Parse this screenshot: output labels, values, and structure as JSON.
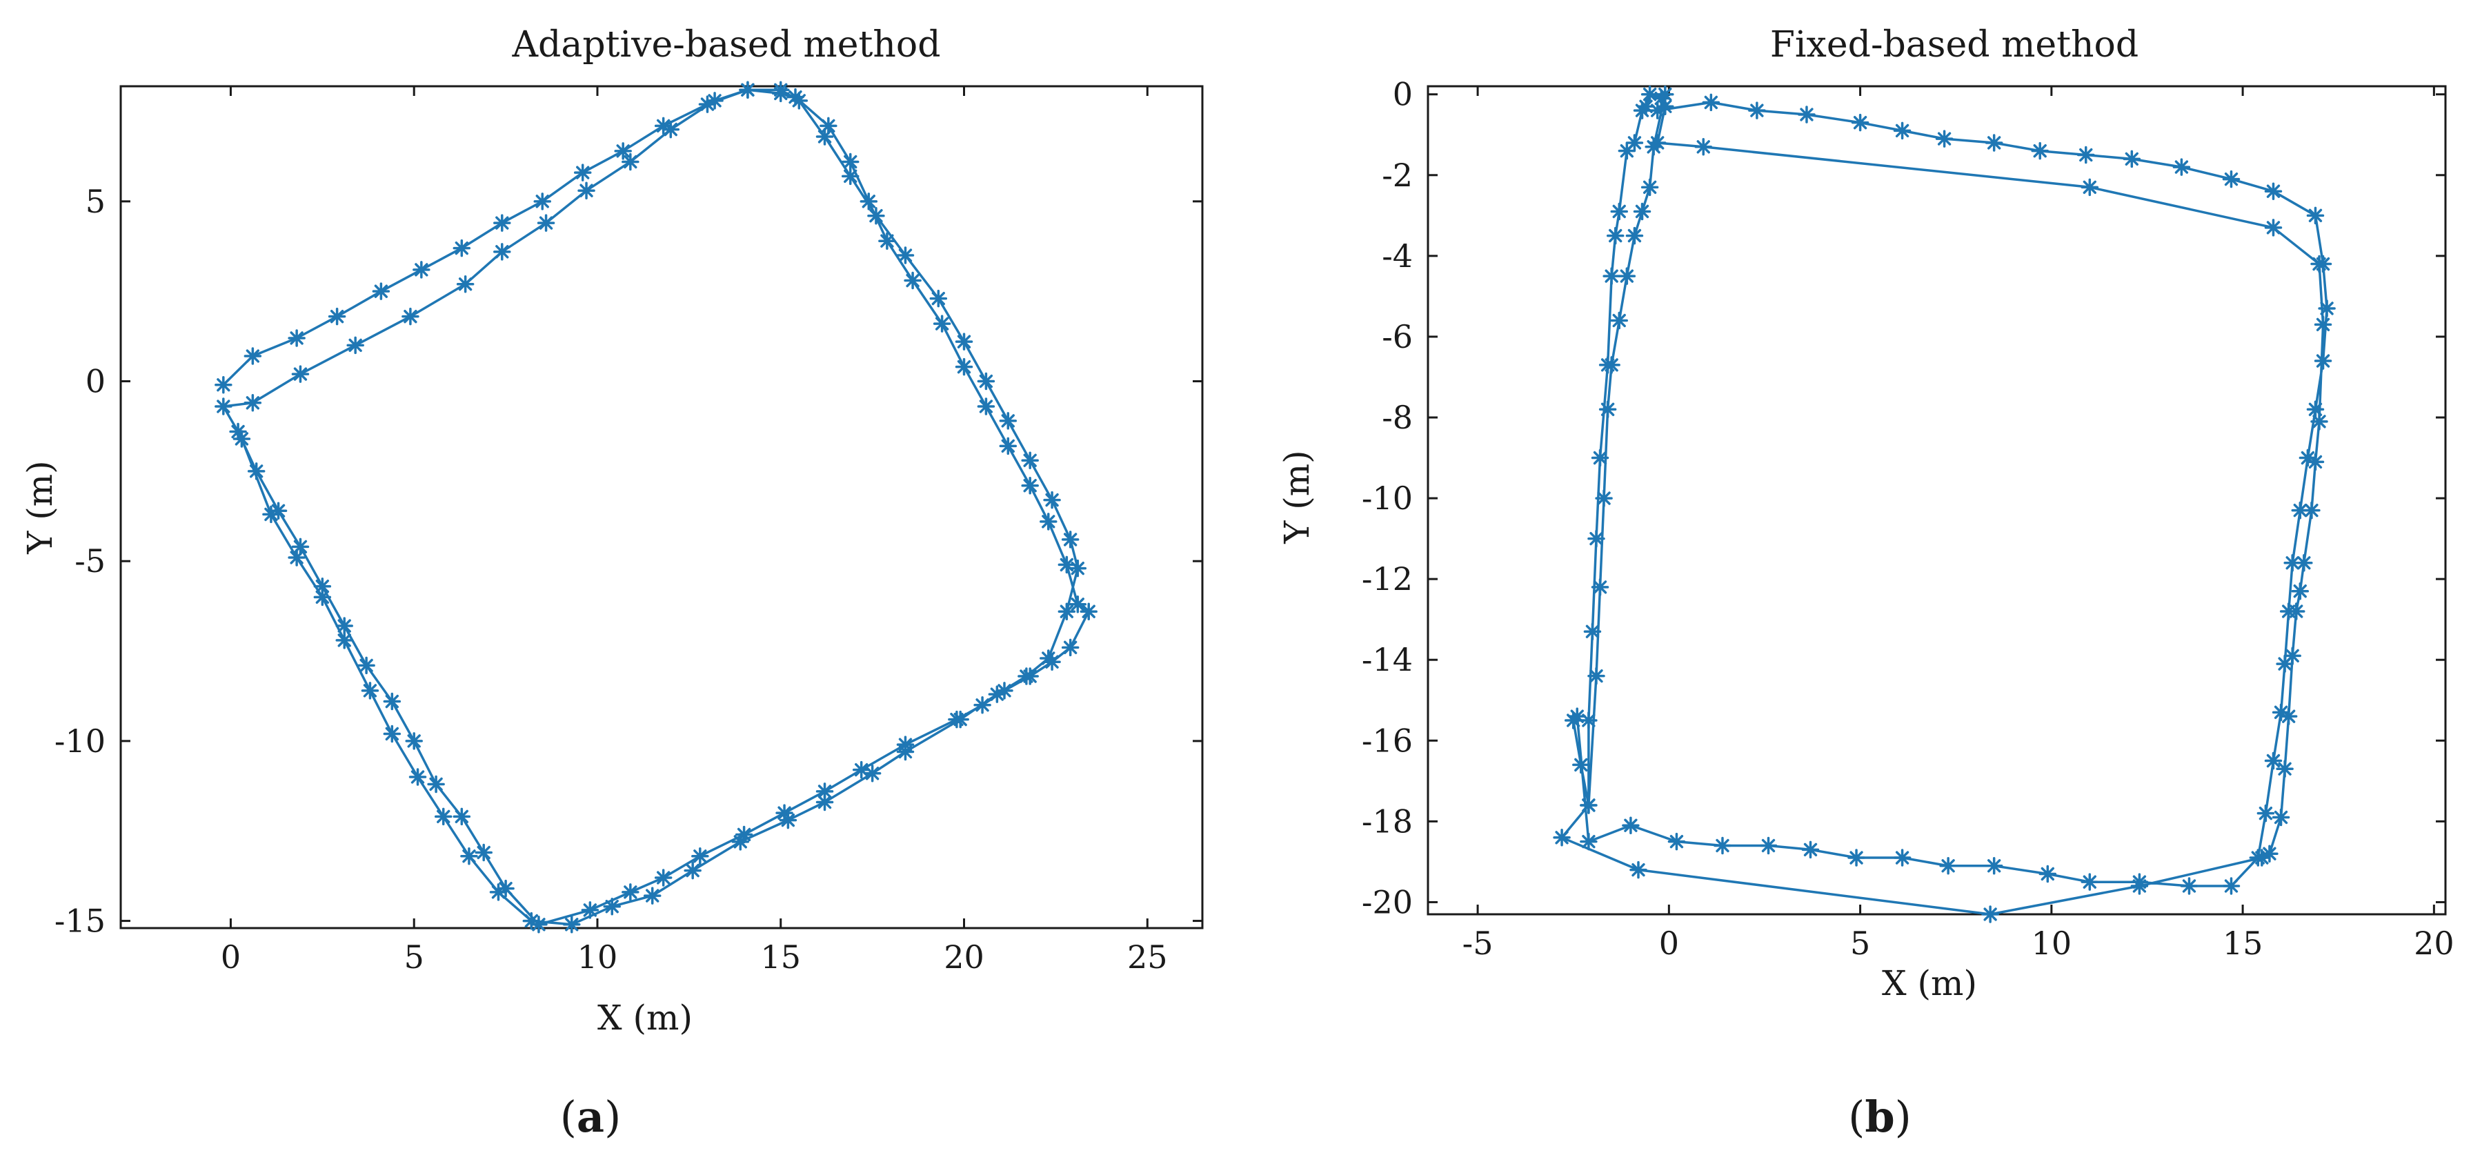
{
  "colors": {
    "series": "#1f77b4",
    "axis": "#1a1a1a"
  },
  "chart_data": [
    {
      "type": "line",
      "panel_label": "a",
      "title": "Adaptive-based method",
      "xlabel": "X (m)",
      "ylabel": "Y (m)",
      "xlim": [
        -3,
        26.5
      ],
      "ylim": [
        -15.2,
        8.2
      ],
      "xticks": [
        0,
        5,
        10,
        15,
        20,
        25
      ],
      "yticks": [
        -15,
        -10,
        -5,
        0,
        5
      ],
      "xtick_labels": [
        "0",
        "5",
        "10",
        "15",
        "20",
        "25"
      ],
      "ytick_labels": [
        "-15",
        "-10",
        "-5",
        "0",
        "5"
      ],
      "marker": "asterisk",
      "series": [
        {
          "name": "trajectory",
          "x": [
            -0.2,
            0.6,
            1.8,
            2.9,
            4.1,
            5.2,
            6.3,
            7.4,
            8.5,
            9.6,
            10.7,
            11.8,
            13.0,
            14.1,
            15.0,
            15.4,
            16.3,
            16.9,
            17.4,
            17.9,
            18.6,
            19.4,
            20.0,
            20.6,
            21.2,
            21.8,
            22.3,
            22.8,
            23.1,
            23.4,
            22.9,
            22.4,
            21.8,
            21.1,
            20.5,
            19.8,
            18.4,
            17.2,
            16.2,
            15.1,
            14.0,
            12.8,
            11.8,
            10.9,
            9.8,
            8.4,
            7.5,
            6.9,
            6.3,
            5.6,
            5.0,
            4.4,
            3.7,
            3.1,
            2.5,
            1.9,
            1.3,
            0.7,
            0.2,
            -0.2,
            0.6,
            1.9,
            3.4,
            4.9,
            6.4,
            7.4,
            8.6,
            9.7,
            10.9,
            12.0,
            13.2,
            14.1,
            15.0,
            15.5,
            16.2,
            16.9,
            17.6,
            18.4,
            19.3,
            20.0,
            20.6,
            21.2,
            21.8,
            22.4,
            22.9,
            23.1,
            22.8,
            22.3,
            21.7,
            20.9,
            19.9,
            18.4,
            17.5,
            16.2,
            15.2,
            13.9,
            12.6,
            11.5,
            10.4,
            9.3,
            8.2,
            7.3,
            6.5,
            5.8,
            5.1,
            4.4,
            3.8,
            3.1,
            2.5,
            1.8,
            1.1,
            0.3
          ],
          "y": [
            -0.1,
            0.7,
            1.2,
            1.8,
            2.5,
            3.1,
            3.7,
            4.4,
            5.0,
            5.8,
            6.4,
            7.1,
            7.7,
            8.1,
            8.0,
            7.9,
            7.1,
            6.1,
            5.0,
            3.9,
            2.8,
            1.6,
            0.4,
            -0.7,
            -1.8,
            -2.9,
            -3.9,
            -5.1,
            -6.2,
            -6.4,
            -7.4,
            -7.8,
            -8.2,
            -8.6,
            -9.0,
            -9.4,
            -10.1,
            -10.8,
            -11.4,
            -12.0,
            -12.6,
            -13.2,
            -13.8,
            -14.2,
            -14.7,
            -15.1,
            -14.1,
            -13.1,
            -12.1,
            -11.2,
            -10.0,
            -8.9,
            -7.9,
            -6.8,
            -5.7,
            -4.6,
            -3.6,
            -2.5,
            -1.4,
            -0.7,
            -0.6,
            0.2,
            1.0,
            1.8,
            2.7,
            3.6,
            4.4,
            5.3,
            6.1,
            7.0,
            7.8,
            8.1,
            8.1,
            7.8,
            6.8,
            5.7,
            4.6,
            3.5,
            2.3,
            1.1,
            0.0,
            -1.1,
            -2.2,
            -3.3,
            -4.4,
            -5.2,
            -6.4,
            -7.7,
            -8.2,
            -8.7,
            -9.4,
            -10.3,
            -10.9,
            -11.7,
            -12.2,
            -12.8,
            -13.6,
            -14.3,
            -14.6,
            -15.1,
            -15.0,
            -14.2,
            -13.2,
            -12.1,
            -11.0,
            -9.8,
            -8.6,
            -7.2,
            -6.0,
            -4.9,
            -3.7,
            -1.6
          ]
        }
      ]
    },
    {
      "type": "line",
      "panel_label": "b",
      "title": "Fixed-based method",
      "xlabel": "X (m)",
      "ylabel": "Y (m)",
      "xlim": [
        -6.3,
        20.3
      ],
      "ylim": [
        -20.3,
        0.2
      ],
      "xticks": [
        -5,
        0,
        5,
        10,
        15,
        20
      ],
      "yticks": [
        0,
        -2,
        -4,
        -6,
        -8,
        -10,
        -12,
        -14,
        -16,
        -18,
        -20
      ],
      "xtick_labels": [
        "-5",
        "0",
        "5",
        "10",
        "15",
        "20"
      ],
      "ytick_labels": [
        "0",
        "-2",
        "-4",
        "-6",
        "-8",
        "-10",
        "-12",
        "-14",
        "-16",
        "-18",
        "-20"
      ],
      "marker": "asterisk",
      "series": [
        {
          "name": "trajectory",
          "x": [
            -0.3,
            1.1,
            2.3,
            3.6,
            5.0,
            6.1,
            7.2,
            8.5,
            9.7,
            10.9,
            12.1,
            13.4,
            14.7,
            15.8,
            16.9,
            17.1,
            17.2,
            17.1,
            16.9,
            16.7,
            16.5,
            16.3,
            16.2,
            16.1,
            16.0,
            15.8,
            15.6,
            15.4,
            14.7,
            13.6,
            12.3,
            11.0,
            9.9,
            8.5,
            7.3,
            6.1,
            4.9,
            3.7,
            2.6,
            1.4,
            0.2,
            -1.0,
            -2.1,
            -2.4,
            -2.5,
            -2.3,
            -2.1,
            -2.1,
            -2.0,
            -1.9,
            -1.8,
            -1.6,
            -1.5,
            -1.4,
            -1.3,
            -1.1,
            -0.9,
            -0.7,
            -0.6,
            -0.5,
            -0.2,
            -0.1,
            -0.3,
            0.9,
            11.0,
            15.8,
            17.0,
            17.1,
            17.0,
            16.9,
            16.8,
            16.6,
            16.5,
            16.4,
            16.3,
            16.2,
            16.1,
            16.0,
            15.7,
            15.5,
            12.3,
            8.4,
            -0.8,
            -2.8,
            -2.1,
            -1.9,
            -1.8,
            -1.7,
            -1.6,
            -1.5,
            -1.3,
            -1.1,
            -0.9,
            -0.7,
            -0.5,
            -0.4,
            -0.1
          ],
          "y": [
            -0.4,
            -0.2,
            -0.4,
            -0.5,
            -0.7,
            -0.9,
            -1.1,
            -1.2,
            -1.4,
            -1.5,
            -1.6,
            -1.8,
            -2.1,
            -2.4,
            -3.0,
            -4.2,
            -5.3,
            -6.6,
            -7.8,
            -9.0,
            -10.3,
            -11.6,
            -12.8,
            -14.1,
            -15.3,
            -16.5,
            -17.8,
            -18.9,
            -19.6,
            -19.6,
            -19.5,
            -19.5,
            -19.3,
            -19.1,
            -19.1,
            -18.9,
            -18.9,
            -18.7,
            -18.6,
            -18.6,
            -18.5,
            -18.1,
            -18.5,
            -15.4,
            -15.5,
            -16.6,
            -17.6,
            -15.5,
            -13.3,
            -11.0,
            -9.0,
            -6.7,
            -4.5,
            -3.5,
            -2.9,
            -1.4,
            -1.2,
            -0.4,
            -0.3,
            0.0,
            -0.1,
            -0.3,
            -1.2,
            -1.3,
            -2.3,
            -3.3,
            -4.2,
            -5.7,
            -8.1,
            -9.1,
            -10.3,
            -11.6,
            -12.3,
            -12.8,
            -13.9,
            -15.4,
            -16.7,
            -17.9,
            -18.8,
            -18.9,
            -19.6,
            -20.3,
            -19.2,
            -18.4,
            -17.6,
            -14.4,
            -12.2,
            -10.0,
            -7.8,
            -6.7,
            -5.6,
            -4.5,
            -3.5,
            -2.9,
            -2.3,
            -1.3,
            0.0
          ]
        }
      ]
    }
  ]
}
